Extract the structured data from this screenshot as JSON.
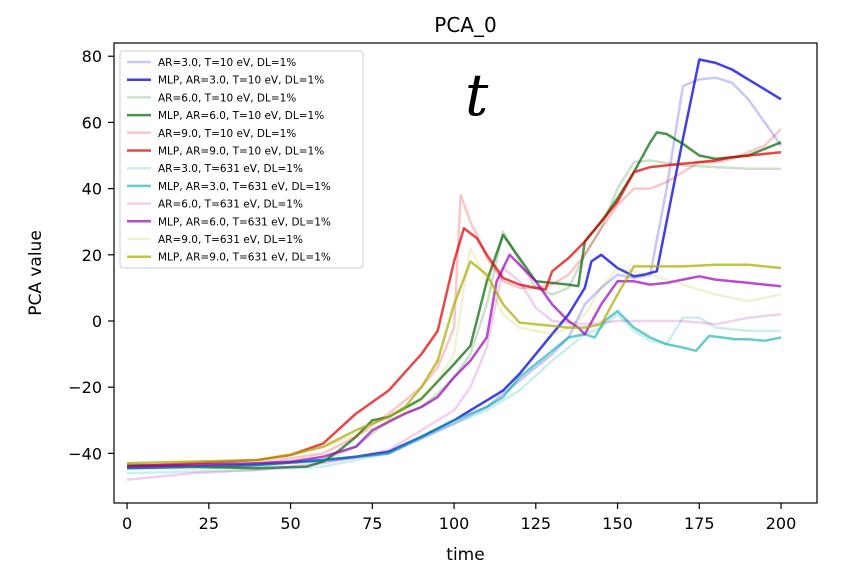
{
  "chart_data": {
    "type": "line",
    "title": "PCA_0",
    "xlabel": "time",
    "ylabel": "PCA value",
    "xlim": [
      -4,
      211
    ],
    "ylim": [
      -55,
      84
    ],
    "xticks": [
      0,
      25,
      50,
      75,
      100,
      125,
      150,
      175,
      200
    ],
    "xtick_labels": [
      "0",
      "25",
      "50",
      "75",
      "100",
      "125",
      "150",
      "175",
      "200"
    ],
    "yticks": [
      -40,
      -20,
      0,
      20,
      40,
      60,
      80
    ],
    "ytick_labels": [
      "−40",
      "−20",
      "0",
      "20",
      "40",
      "60",
      "80"
    ],
    "grid": false,
    "legend_position": "upper-left",
    "annotation": "t",
    "series": [
      {
        "name": "AR=3.0, T=10 eV, DL=1%",
        "color": "#0000dd",
        "opacity": 0.22,
        "width": 2.5,
        "x": [
          0,
          20,
          40,
          60,
          80,
          100,
          110,
          120,
          130,
          135,
          140,
          145,
          150,
          155,
          160,
          165,
          170,
          175,
          180,
          185,
          190,
          195,
          200
        ],
        "y": [
          -44,
          -43.5,
          -43,
          -42.5,
          -40,
          -31,
          -26,
          -18,
          -10,
          -5,
          5,
          10,
          14,
          13,
          14,
          40,
          71,
          73,
          73.5,
          72,
          67,
          60,
          53
        ]
      },
      {
        "name": "MLP, AR=3.0, T=10 eV, DL=1%",
        "color": "#0000dd",
        "opacity": 0.75,
        "width": 2.5,
        "x": [
          0,
          20,
          40,
          60,
          70,
          80,
          90,
          100,
          105,
          110,
          115,
          120,
          125,
          130,
          135,
          140,
          142,
          145,
          150,
          155,
          158,
          162,
          165,
          170,
          175,
          180,
          185,
          190,
          195,
          200
        ],
        "y": [
          -44.5,
          -44,
          -43.5,
          -42,
          -41,
          -39.5,
          -35,
          -30,
          -27,
          -24,
          -21,
          -16,
          -10,
          -4,
          2,
          10,
          18,
          20,
          16,
          13.5,
          14,
          15,
          30,
          55,
          79,
          78,
          76,
          73,
          70,
          67
        ]
      },
      {
        "name": "AR=6.0, T=10 eV, DL=1%",
        "color": "#006400",
        "opacity": 0.2,
        "width": 2.5,
        "x": [
          0,
          20,
          40,
          60,
          70,
          80,
          90,
          95,
          100,
          105,
          110,
          115,
          120,
          125,
          130,
          135,
          140,
          145,
          150,
          155,
          160,
          170,
          180,
          190,
          200
        ],
        "y": [
          -44.5,
          -44.5,
          -44,
          -42,
          -38,
          -30,
          -26,
          -22,
          -17,
          -10,
          5,
          27,
          18,
          10,
          8,
          10,
          20,
          28,
          40,
          48,
          48.5,
          47,
          46.5,
          46,
          46
        ]
      },
      {
        "name": "MLP, AR=6.0, T=10 eV, DL=1%",
        "color": "#006400",
        "opacity": 0.7,
        "width": 2.5,
        "x": [
          0,
          20,
          40,
          55,
          60,
          65,
          70,
          75,
          80,
          90,
          100,
          105,
          110,
          115,
          120,
          125,
          130,
          135,
          138,
          140,
          145,
          150,
          155,
          160,
          162,
          165,
          170,
          175,
          180,
          185,
          190,
          195,
          200
        ],
        "y": [
          -43.5,
          -44,
          -44.5,
          -44,
          -42.5,
          -39,
          -35,
          -30,
          -29,
          -23.5,
          -13,
          -7.5,
          12,
          26,
          19,
          12,
          11.5,
          11,
          10.5,
          24,
          30,
          37,
          45,
          54,
          57,
          56.5,
          53.5,
          50,
          49,
          49.5,
          50,
          52,
          54
        ]
      },
      {
        "name": "AR=9.0, T=10 eV, DL=1%",
        "color": "#dd0000",
        "opacity": 0.22,
        "width": 2.5,
        "x": [
          0,
          20,
          40,
          60,
          70,
          80,
          90,
          95,
          100,
          102,
          105,
          108,
          110,
          115,
          120,
          125,
          130,
          135,
          140,
          145,
          150,
          155,
          160,
          165,
          170,
          175,
          180,
          185,
          190,
          195,
          200
        ],
        "y": [
          -44,
          -44,
          -43,
          -40,
          -35,
          -28,
          -20,
          -14,
          -2,
          38,
          30,
          24,
          19,
          12,
          10,
          10,
          11,
          14,
          20,
          28,
          35,
          40,
          40,
          42,
          45,
          48,
          48,
          49,
          51,
          53,
          58
        ]
      },
      {
        "name": "MLP, AR=9.0, T=10 eV, DL=1%",
        "color": "#dd0000",
        "opacity": 0.72,
        "width": 2.5,
        "x": [
          0,
          20,
          40,
          50,
          60,
          70,
          80,
          90,
          95,
          100,
          103,
          107,
          110,
          115,
          120,
          125,
          128,
          130,
          135,
          140,
          145,
          150,
          155,
          160,
          165,
          170,
          175,
          180,
          185,
          190,
          195,
          200
        ],
        "y": [
          -44,
          -43,
          -42,
          -40.5,
          -37,
          -28,
          -21,
          -10,
          -3,
          18,
          28,
          25,
          20,
          13,
          11,
          10,
          9.5,
          15,
          19,
          24,
          30,
          36,
          45,
          46.5,
          47,
          47.5,
          48,
          48.5,
          49.5,
          50,
          50.5,
          51
        ]
      },
      {
        "name": "AR=3.0, T=631 eV, DL=1%",
        "color": "#00aaaa",
        "opacity": 0.2,
        "width": 2.5,
        "x": [
          0,
          20,
          40,
          60,
          80,
          100,
          110,
          120,
          130,
          135,
          140,
          145,
          150,
          155,
          160,
          165,
          170,
          175,
          180,
          190,
          200
        ],
        "y": [
          -46,
          -45.5,
          -45,
          -44,
          -40,
          -31,
          -27,
          -21,
          -12,
          -8,
          -4,
          -2,
          2,
          -3,
          -6,
          -7,
          1,
          1,
          -2,
          -3,
          -3
        ]
      },
      {
        "name": "MLP, AR=3.0, T=631 eV, DL=1%",
        "color": "#00aaaa",
        "opacity": 0.6,
        "width": 2.5,
        "x": [
          0,
          20,
          40,
          60,
          80,
          100,
          110,
          115,
          120,
          125,
          130,
          135,
          140,
          143,
          146,
          150,
          155,
          160,
          165,
          170,
          174,
          178,
          182,
          186,
          190,
          195,
          200
        ],
        "y": [
          -44.5,
          -44,
          -43.5,
          -42,
          -40,
          -30,
          -26,
          -23,
          -17,
          -13,
          -9,
          -5,
          -4,
          -5,
          0,
          3,
          -2,
          -5,
          -7,
          -8,
          -9,
          -4.5,
          -5,
          -5.5,
          -5.5,
          -6,
          -5
        ]
      },
      {
        "name": "AR=6.0, T=631 eV, DL=1%",
        "color": "#aa00aa",
        "opacity": 0.18,
        "width": 2.5,
        "x": [
          0,
          20,
          40,
          60,
          80,
          90,
          100,
          105,
          110,
          115,
          120,
          125,
          130,
          140,
          150,
          160,
          170,
          180,
          190,
          200
        ],
        "y": [
          -48,
          -46,
          -45,
          -43,
          -39,
          -33,
          -27,
          -20,
          -8,
          16,
          12,
          4,
          0,
          -1,
          0,
          0,
          0,
          -1,
          1,
          2
        ]
      },
      {
        "name": "MLP, AR=6.0, T=631 eV, DL=1%",
        "color": "#9900bb",
        "opacity": 0.7,
        "width": 2.5,
        "x": [
          0,
          20,
          40,
          50,
          60,
          70,
          75,
          80,
          85,
          90,
          95,
          100,
          105,
          110,
          113,
          117,
          120,
          125,
          130,
          135,
          138,
          140,
          145,
          150,
          155,
          160,
          165,
          170,
          175,
          180,
          185,
          190,
          195,
          200
        ],
        "y": [
          -44,
          -43.5,
          -43,
          -42.5,
          -41,
          -38,
          -33,
          -30.5,
          -28,
          -26,
          -23,
          -17,
          -12,
          -5,
          12,
          20,
          17,
          12,
          5,
          0,
          -2,
          -4,
          5,
          12,
          12,
          11,
          11.5,
          12.5,
          13.5,
          12.5,
          12,
          11.5,
          11,
          10.5
        ]
      },
      {
        "name": "AR=9.0, T=631 eV, DL=1%",
        "color": "#aaaa00",
        "opacity": 0.17,
        "width": 2.5,
        "x": [
          0,
          20,
          40,
          60,
          80,
          90,
          95,
          100,
          103,
          105,
          110,
          115,
          120,
          125,
          130,
          135,
          140,
          145,
          150,
          155,
          160,
          170,
          180,
          190,
          200
        ],
        "y": [
          -43,
          -42.5,
          -42,
          -38,
          -31,
          -24,
          -18,
          -10,
          10,
          22,
          12,
          2,
          -2,
          -3,
          -4,
          -2,
          2,
          10,
          16,
          15,
          14,
          11,
          8,
          6,
          8
        ]
      },
      {
        "name": "MLP, AR=9.0, T=631 eV, DL=1%",
        "color": "#aaaa00",
        "opacity": 0.7,
        "width": 2.5,
        "x": [
          0,
          20,
          40,
          50,
          60,
          70,
          80,
          85,
          90,
          95,
          100,
          105,
          110,
          115,
          120,
          125,
          130,
          135,
          140,
          145,
          150,
          155,
          160,
          170,
          180,
          190,
          200
        ],
        "y": [
          -43,
          -42.5,
          -42,
          -40.5,
          -38,
          -33,
          -29,
          -26,
          -20,
          -12,
          5,
          18,
          14,
          5,
          -0.5,
          -1,
          -1.5,
          -2,
          -2,
          -1,
          8,
          16.5,
          16.5,
          16.5,
          17,
          17,
          16
        ]
      }
    ]
  }
}
